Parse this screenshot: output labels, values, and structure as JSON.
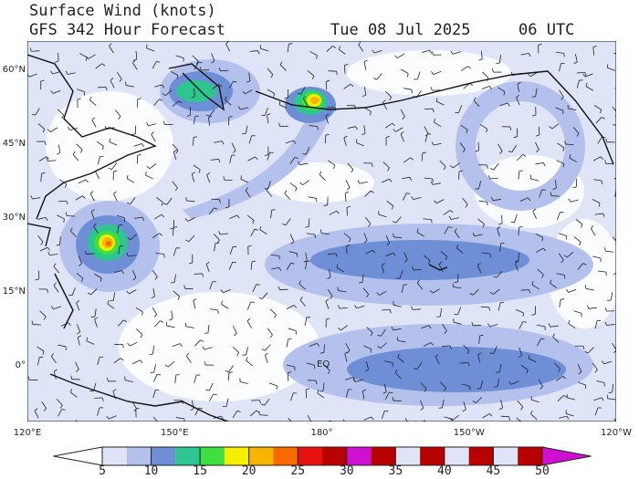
{
  "header": {
    "title": "Surface Wind (knots)",
    "subtitle": "GFS 342 Hour Forecast",
    "date": "Tue 08 Jul 2025",
    "time": "06 UTC"
  },
  "map": {
    "lat_labels": [
      "60°N",
      "45°N",
      "30°N",
      "15°N",
      "0°"
    ],
    "lon_labels": [
      "120°E",
      "150°E",
      "180°",
      "150°W",
      "120°W"
    ],
    "equator_label": "EQ"
  },
  "colorbar": {
    "ticks": [
      5,
      10,
      15,
      20,
      25,
      30,
      35,
      40,
      45,
      50
    ],
    "colors": [
      "#ffffff",
      "#dfe5f7",
      "#b3c1ec",
      "#6e8ed6",
      "#2ec68e",
      "#3ee040",
      "#f4f000",
      "#f8b400",
      "#f86a00",
      "#e81010",
      "#b80000",
      "#d010d0"
    ]
  }
}
